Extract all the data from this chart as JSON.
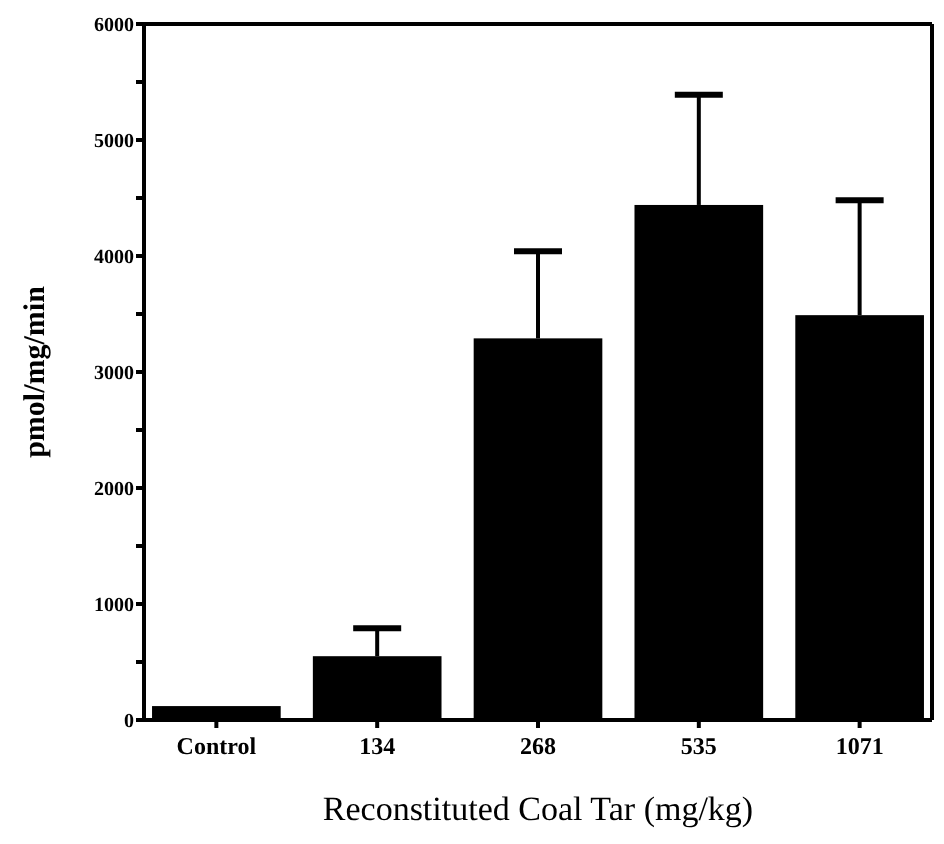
{
  "chart_data": {
    "type": "bar",
    "xlabel": "Reconstituted Coal Tar (mg/kg)",
    "ylabel": "pmol/mg/min",
    "categories": [
      "Control",
      "134",
      "268",
      "535",
      "1071"
    ],
    "values": [
      120,
      550,
      3290,
      4440,
      3490
    ],
    "errors": [
      null,
      [
        550,
        790
      ],
      [
        3290,
        4040
      ],
      [
        4440,
        5390
      ],
      [
        3490,
        4480
      ]
    ],
    "color": "#000000",
    "ylim": [
      0,
      6000
    ],
    "yticks": [
      0,
      {
        "value": 500,
        "label": null
      },
      1000,
      {
        "value": 1500,
        "label": null
      },
      2000,
      {
        "value": 2500,
        "label": null
      },
      3000,
      {
        "value": 3500,
        "label": null
      },
      4000,
      {
        "value": 4500,
        "label": null
      },
      5000,
      {
        "value": 5500,
        "label": null
      },
      6000
    ]
  }
}
